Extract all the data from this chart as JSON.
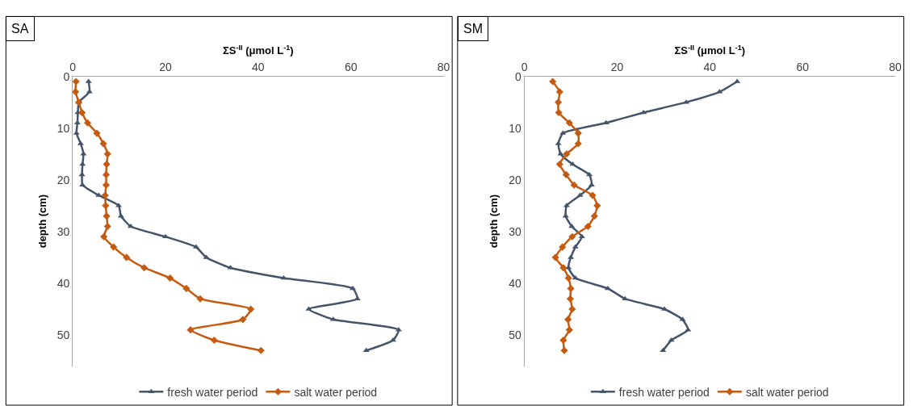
{
  "chart_data": [
    {
      "type": "line",
      "title": "SA",
      "xlabel": "ΣS$^{-II}$ (μmol L$^{-1}$)",
      "ylabel": "depth (cm)",
      "xlim": [
        0,
        80
      ],
      "xticks": [
        0,
        20,
        40,
        60,
        80
      ],
      "ylim": [
        56,
        0
      ],
      "yticks": [
        0,
        10,
        20,
        30,
        40,
        50
      ],
      "legend": "bottom",
      "line_style": "solid",
      "series": [
        {
          "name": "fresh water period",
          "color": "#44546a",
          "marker": "triangle",
          "x": [
            3.4,
            3.6,
            1.3,
            1.1,
            1.0,
            0.8,
            1.7,
            2.3,
            2.1,
            2.0,
            2.1,
            5.6,
            9.9,
            10.4,
            12.5,
            20.0,
            26.6,
            28.8,
            34.0,
            45.5,
            60.4,
            61.4,
            50.9,
            56.2,
            70.3,
            69.1,
            63.3
          ],
          "values": [
            1,
            3,
            5,
            7,
            9,
            11,
            13,
            15,
            17,
            19,
            21,
            23,
            25,
            27,
            29,
            31,
            33,
            35,
            37,
            39,
            41,
            43,
            45,
            47,
            49,
            51,
            53
          ]
        },
        {
          "name": "salt water period",
          "color": "#c55a11",
          "marker": "diamond",
          "x": [
            0.7,
            0.6,
            1.3,
            2.0,
            3.2,
            5.2,
            6.6,
            7.5,
            7.3,
            7.2,
            7.2,
            7.0,
            7.1,
            7.3,
            7.5,
            6.7,
            8.8,
            11.6,
            15.4,
            21.0,
            24.5,
            27.5,
            38.4,
            36.7,
            25.4,
            30.5,
            40.6
          ],
          "values": [
            1,
            3,
            5,
            7,
            9,
            11,
            13,
            15,
            17,
            19,
            21,
            23,
            25,
            27,
            29,
            31,
            33,
            35,
            37,
            39,
            41,
            43,
            45,
            47,
            49,
            51,
            53
          ]
        }
      ]
    },
    {
      "type": "line",
      "title": "SM",
      "xlabel": "ΣS$^{-II}$ (μmol L$^{-1}$)",
      "ylabel": "depth (cm)",
      "xlim": [
        0,
        80
      ],
      "xticks": [
        0,
        20,
        40,
        60,
        80
      ],
      "ylim": [
        56,
        0
      ],
      "yticks": [
        0,
        10,
        20,
        30,
        40,
        50
      ],
      "legend": "bottom",
      "line_style": "solid",
      "series": [
        {
          "name": "fresh water period",
          "color": "#44546a",
          "marker": "triangle",
          "x": [
            45.9,
            42.1,
            34.9,
            25.7,
            17.6,
            8.3,
            7.3,
            7.8,
            10.4,
            14.0,
            14.5,
            12.0,
            9.1,
            8.9,
            10.2,
            12.4,
            11.0,
            10.0,
            9.5,
            11.0,
            18.0,
            21.7,
            30.2,
            34.1,
            35.3,
            31.7,
            29.9
          ],
          "values": [
            1,
            3,
            5,
            7,
            9,
            11,
            13,
            15,
            17,
            19,
            21,
            23,
            25,
            27,
            29,
            31,
            33,
            35,
            37,
            39,
            41,
            43,
            45,
            47,
            49,
            51,
            53
          ]
        },
        {
          "name": "salt water period",
          "color": "#c55a11",
          "marker": "diamond",
          "x": [
            6.1,
            7.6,
            7.3,
            7.4,
            9.7,
            11.6,
            11.6,
            9.1,
            7.6,
            9.0,
            10.7,
            14.7,
            15.7,
            15.1,
            13.7,
            10.3,
            8.2,
            6.7,
            8.4,
            9.5,
            10.0,
            9.9,
            10.3,
            9.4,
            9.7,
            8.4,
            8.6
          ],
          "values": [
            1,
            3,
            5,
            7,
            9,
            11,
            13,
            15,
            17,
            19,
            21,
            23,
            25,
            27,
            29,
            31,
            33,
            35,
            37,
            39,
            41,
            43,
            45,
            47,
            49,
            51,
            53
          ]
        }
      ]
    }
  ]
}
